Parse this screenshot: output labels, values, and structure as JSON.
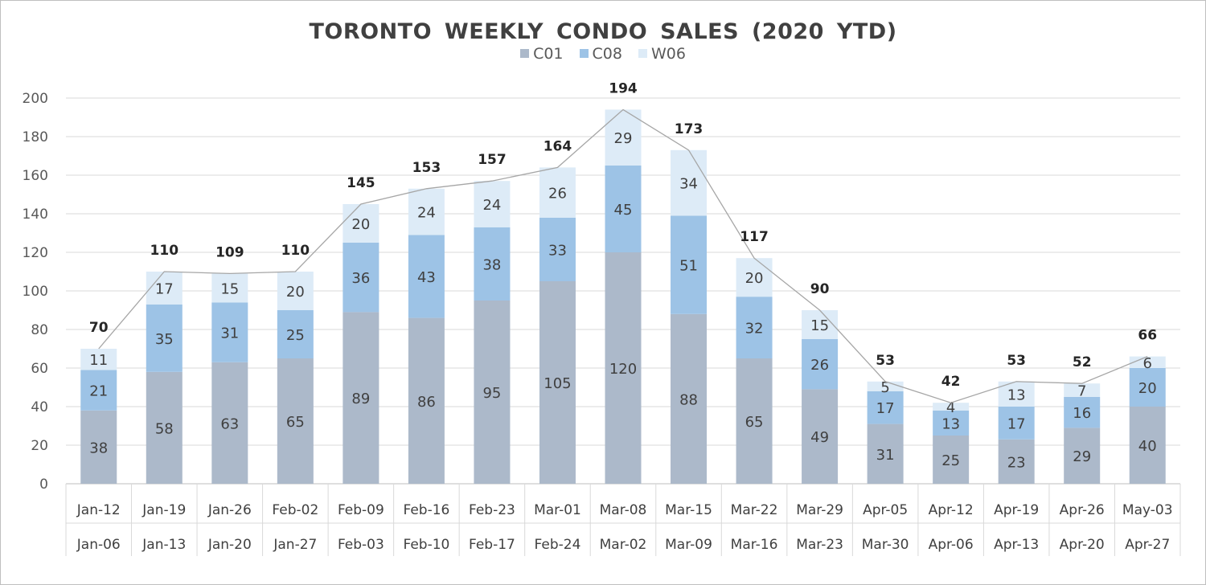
{
  "chart_data": {
    "type": "bar",
    "stacked": true,
    "title": "TORONTO  WEEKLY  CONDO  SALES  (2020 YTD)",
    "categories": [
      "Jan-12",
      "Jan-19",
      "Jan-26",
      "Feb-02",
      "Feb-09",
      "Feb-16",
      "Feb-23",
      "Mar-01",
      "Mar-08",
      "Mar-15",
      "Mar-22",
      "Mar-29",
      "Apr-05",
      "Apr-12",
      "Apr-19",
      "Apr-26",
      "May-03"
    ],
    "categories_start": [
      "Jan-06",
      "Jan-13",
      "Jan-20",
      "Jan-27",
      "Feb-03",
      "Feb-10",
      "Feb-17",
      "Feb-24",
      "Mar-02",
      "Mar-09",
      "Mar-16",
      "Mar-23",
      "Mar-30",
      "Apr-06",
      "Apr-13",
      "Apr-20",
      "Apr-27"
    ],
    "series": [
      {
        "name": "C01",
        "color": "#acb9ca",
        "values": [
          38,
          58,
          63,
          65,
          89,
          86,
          95,
          105,
          120,
          88,
          65,
          49,
          31,
          25,
          23,
          29,
          40
        ]
      },
      {
        "name": "C08",
        "color": "#9dc3e6",
        "values": [
          21,
          35,
          31,
          25,
          36,
          43,
          38,
          33,
          45,
          51,
          32,
          26,
          17,
          13,
          17,
          16,
          20
        ]
      },
      {
        "name": "W06",
        "color": "#ddebf7",
        "values": [
          11,
          17,
          15,
          20,
          20,
          24,
          24,
          26,
          29,
          34,
          20,
          15,
          5,
          4,
          13,
          7,
          6
        ]
      }
    ],
    "totals": [
      70,
      110,
      109,
      110,
      145,
      153,
      157,
      164,
      194,
      173,
      117,
      90,
      53,
      42,
      53,
      52,
      66
    ],
    "total_line_color": "#a6a6a6",
    "ylim": [
      0,
      200
    ],
    "yticks": [
      0,
      20,
      40,
      60,
      80,
      100,
      120,
      140,
      160,
      180,
      200
    ],
    "grid": true,
    "legend_position": "top",
    "xlabel": "",
    "ylabel": ""
  }
}
